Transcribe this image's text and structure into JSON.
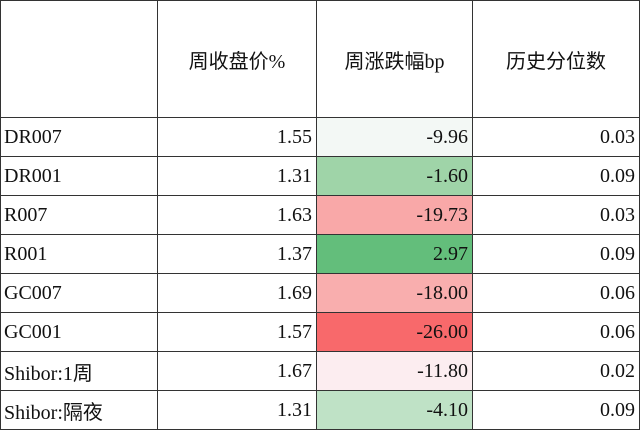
{
  "table": {
    "header": [
      "周收盘价%",
      "周涨跌幅bp",
      "历史分位数"
    ],
    "rows": [
      [
        "DR007",
        "1.55",
        "-9.96",
        "0.03"
      ],
      [
        "DR001",
        "1.31",
        "-1.60",
        "0.09"
      ],
      [
        "R007",
        "1.63",
        "-19.73",
        "0.03"
      ],
      [
        "R001",
        "1.37",
        "2.97",
        "0.09"
      ],
      [
        "GC007",
        "1.69",
        "-18.00",
        "0.06"
      ],
      [
        "GC001",
        "1.57",
        "-26.00",
        "0.06"
      ],
      [
        "Shibor:1周",
        "1.67",
        "-11.80",
        "0.02"
      ],
      [
        "Shibor:隔夜",
        "1.31",
        "-4.10",
        "0.09"
      ]
    ],
    "change_colors": [
      "#f3f8f5",
      "#9fd4a8",
      "#f9a8a8",
      "#63be7b",
      "#f9aeae",
      "#f8696b",
      "#fcedf0",
      "#bfe2c6"
    ]
  }
}
